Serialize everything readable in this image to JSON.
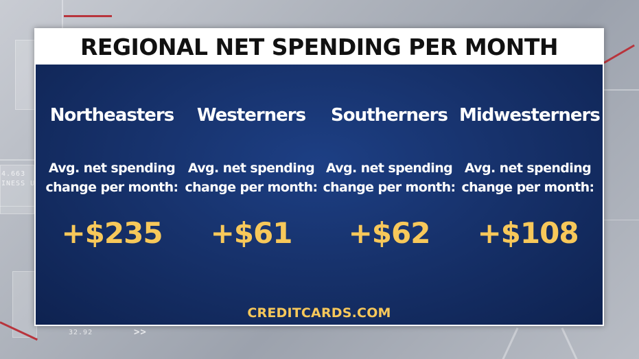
{
  "title": "REGIONAL NET SPENDING PER MONTH",
  "regions": [
    {
      "name": "Northeasters",
      "desc_line1": "Avg. net spending",
      "desc_line2": "change per month:",
      "value": "+$235"
    },
    {
      "name": "Westerners",
      "desc_line1": "Avg. net spending",
      "desc_line2": "change per month:",
      "value": "+$61"
    },
    {
      "name": "Southerners",
      "desc_line1": "Avg. net spending",
      "desc_line2": "change per month:",
      "value": "+$62"
    },
    {
      "name": "Midwesterners",
      "desc_line1": "Avg. net spending",
      "desc_line2": "change per month:",
      "value": "+$108"
    }
  ],
  "source": "CREDITCARDS.COM",
  "background": {
    "text_1": "4.663",
    "text_2": "INESS U",
    "text_3": "32.92",
    "chevrons": ">>"
  },
  "colors": {
    "panel": "#17326c",
    "title_bar": "#ffffff",
    "accent_gold": "#f7c85a",
    "stripe_red": "#b8343c"
  }
}
